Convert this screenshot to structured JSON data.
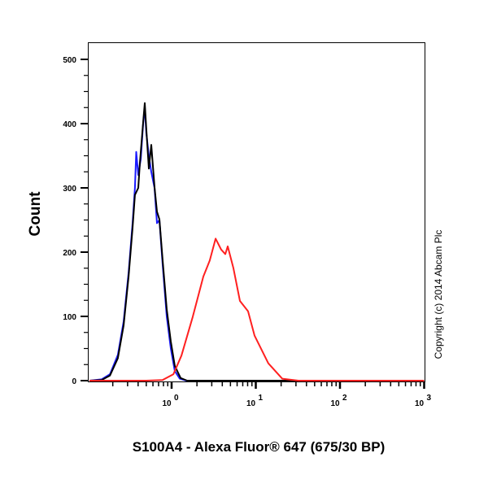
{
  "chart_data": {
    "type": "line",
    "title": "",
    "xlabel": "S100A4 - Alexa Fluor® 647 (675/30 BP)",
    "ylabel": "Count",
    "x_scale": "log",
    "xlim": [
      0.1,
      1000
    ],
    "ylim": [
      0,
      525
    ],
    "y_ticks": [
      0,
      100,
      200,
      300,
      400,
      500
    ],
    "y_tick_labels": [
      "0",
      "100",
      "200",
      "300",
      "400",
      "500"
    ],
    "x_ticks": [
      1,
      10,
      100,
      1000
    ],
    "x_tick_labels": [
      {
        "base": "10",
        "exp": "0"
      },
      {
        "base": "10",
        "exp": "1"
      },
      {
        "base": "10",
        "exp": "2"
      },
      {
        "base": "10",
        "exp": "3"
      }
    ],
    "grid": false,
    "series": [
      {
        "color": "#1a1aff",
        "x": [
          0.106,
          0.148,
          0.185,
          0.23,
          0.269,
          0.308,
          0.344,
          0.367,
          0.38,
          0.402,
          0.43,
          0.459,
          0.48,
          0.501,
          0.536,
          0.573,
          0.627,
          0.67,
          0.716,
          0.783,
          0.875,
          0.978,
          1.09,
          1.25,
          1.5,
          1000
        ],
        "y": [
          0,
          2,
          10,
          40,
          92,
          168,
          245,
          300,
          356,
          320,
          345,
          400,
          425,
          385,
          350,
          325,
          300,
          245,
          250,
          180,
          100,
          50,
          15,
          3,
          0,
          0
        ]
      },
      {
        "color": "#000000",
        "x": [
          0.106,
          0.148,
          0.185,
          0.23,
          0.269,
          0.308,
          0.344,
          0.367,
          0.402,
          0.42,
          0.459,
          0.48,
          0.501,
          0.536,
          0.573,
          0.627,
          0.67,
          0.716,
          0.783,
          0.875,
          0.978,
          1.09,
          1.28,
          1.53,
          1000
        ],
        "y": [
          0,
          1,
          8,
          35,
          86,
          162,
          238,
          289,
          300,
          339,
          402,
          432,
          391,
          330,
          367,
          301,
          263,
          251,
          187,
          111,
          61,
          23,
          4,
          0,
          0
        ]
      },
      {
        "color": "#ff2020",
        "x": [
          0.106,
          0.5,
          0.78,
          1.05,
          1.31,
          1.78,
          2.38,
          2.84,
          3.33,
          3.88,
          4.34,
          4.64,
          5.42,
          6.48,
          8.09,
          9.68,
          14.1,
          20.6,
          32.1,
          1000
        ],
        "y": [
          0,
          0,
          1,
          10,
          39,
          99,
          162,
          187,
          221,
          204,
          197,
          209,
          175,
          124,
          108,
          70,
          27,
          3,
          0,
          0
        ]
      }
    ]
  },
  "copyright": "Copyright (c) 2014 Abcam Plc"
}
